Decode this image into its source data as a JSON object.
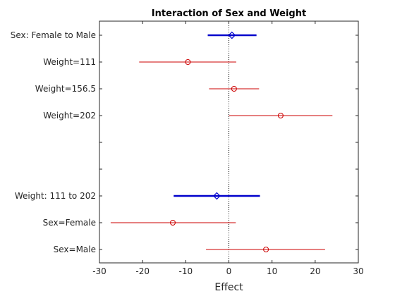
{
  "chart_data": {
    "type": "scatter",
    "title": "Interaction of Sex and Weight",
    "xlabel": "Effect",
    "ylabel": "",
    "xlim": [
      -30,
      30
    ],
    "xticks": [
      -30,
      -20,
      -10,
      0,
      10,
      20,
      30
    ],
    "grid": false,
    "zero_line": true,
    "colors": {
      "main_effect": "#0000cc",
      "conditional_effect": "#cc0000",
      "zero_line": "#000000",
      "axes": "#262626"
    },
    "main_effects": [
      {
        "label": "Sex: Female to Male",
        "effect": 0.7,
        "ci_low": -4.9,
        "ci_high": 6.4
      },
      {
        "label": "Weight: 111 to 202",
        "effect": -2.8,
        "ci_low": -12.8,
        "ci_high": 7.2
      }
    ],
    "conditional_effects": [
      {
        "label": "Weight=111",
        "effect": -9.5,
        "ci_low": -20.8,
        "ci_high": 1.7
      },
      {
        "label": "Weight=156.5",
        "effect": 1.2,
        "ci_low": -4.6,
        "ci_high": 7.0
      },
      {
        "label": "Weight=202",
        "effect": 12.0,
        "ci_low": 0.0,
        "ci_high": 24.0
      },
      {
        "label": "Sex=Female",
        "effect": -13.0,
        "ci_low": -27.4,
        "ci_high": 1.6
      },
      {
        "label": "Sex=Male",
        "effect": 8.6,
        "ci_low": -5.3,
        "ci_high": 22.3
      }
    ]
  }
}
